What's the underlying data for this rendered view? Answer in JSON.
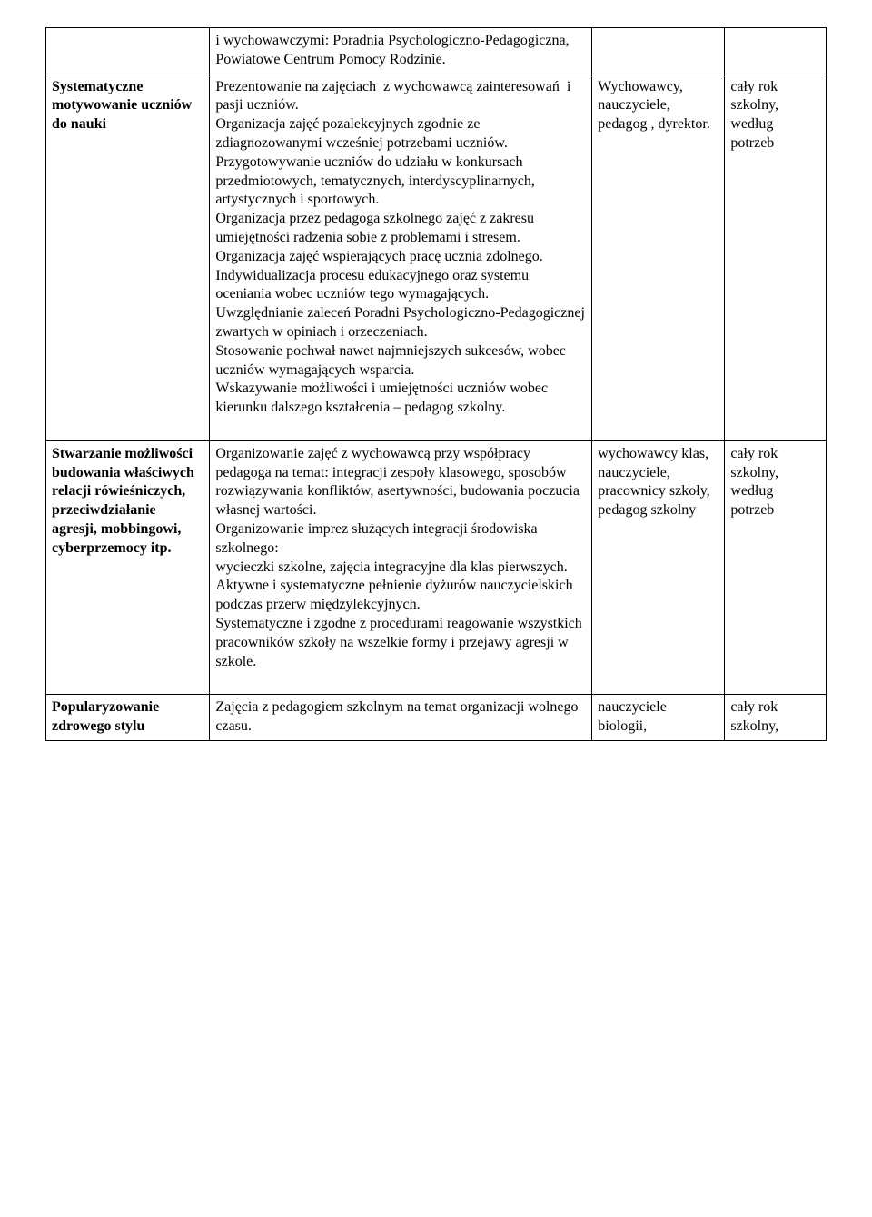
{
  "table": {
    "rows": [
      {
        "c1": "",
        "c2": "i wychowawczymi: Poradnia Psychologiczno-Pedagogiczna, Powiatowe Centrum Pomocy Rodzinie.",
        "c3": "",
        "c4": ""
      },
      {
        "c1": "Systematyczne motywowanie uczniów do nauki",
        "c2": "Prezentowanie na zajęciach  z wychowawcą zainteresowań  i pasji uczniów.\nOrganizacja zajęć pozalekcyjnych zgodnie ze zdiagnozowanymi wcześniej potrzebami uczniów.\nPrzygotowywanie uczniów do udziału w konkursach przedmiotowych, tematycznych, interdyscyplinarnych, artystycznych i sportowych.\nOrganizacja przez pedagoga szkolnego zajęć z zakresu umiejętności radzenia sobie z problemami i stresem.\nOrganizacja zajęć wspierających pracę ucznia zdolnego.\nIndywidualizacja procesu edukacyjnego oraz systemu oceniania wobec uczniów tego wymagających.\nUwzględnianie zaleceń Poradni Psychologiczno-Pedagogicznej zwartych w opiniach i orzeczeniach.\nStosowanie pochwał nawet najmniejszych sukcesów, wobec uczniów wymagających wsparcia.\nWskazywanie możliwości i umiejętności uczniów wobec kierunku dalszego kształcenia – pedagog szkolny.",
        "c3": "Wychowawcy, nauczyciele, pedagog , dyrektor.",
        "c4": "cały rok szkolny, według potrzeb"
      },
      {
        "c1": "Stwarzanie możliwości budowania właściwych relacji rówieśniczych, przeciwdziałanie agresji, mobbingowi, cyberprzemocy itp.",
        "c2": "Organizowanie zajęć z wychowawcą przy współpracy pedagoga na temat: integracji zespoły klasowego, sposobów rozwiązywania konfliktów, asertywności, budowania poczucia własnej wartości.\nOrganizowanie imprez służących integracji środowiska szkolnego:\nwycieczki szkolne, zajęcia integracyjne dla klas pierwszych.\nAktywne i systematyczne pełnienie dyżurów nauczycielskich podczas przerw międzylekcyjnych.\nSystematyczne i zgodne z procedurami reagowanie wszystkich pracowników szkoły na wszelkie formy i przejawy agresji w szkole.",
        "c3": "wychowawcy klas, nauczyciele, pracownicy szkoły, pedagog szkolny",
        "c4": "cały rok szkolny, według potrzeb"
      },
      {
        "c1": "Popularyzowanie zdrowego stylu",
        "c2": "Zajęcia z pedagogiem szkolnym na temat organizacji wolnego czasu.",
        "c3": "nauczyciele biologii,",
        "c4": "cały rok szkolny,"
      }
    ]
  },
  "style": {
    "font_family": "Times New Roman",
    "font_size_pt": 12,
    "border_color": "#000000",
    "background_color": "#ffffff",
    "text_color": "#000000",
    "col_widths_pct": [
      21,
      49,
      17,
      13
    ]
  }
}
